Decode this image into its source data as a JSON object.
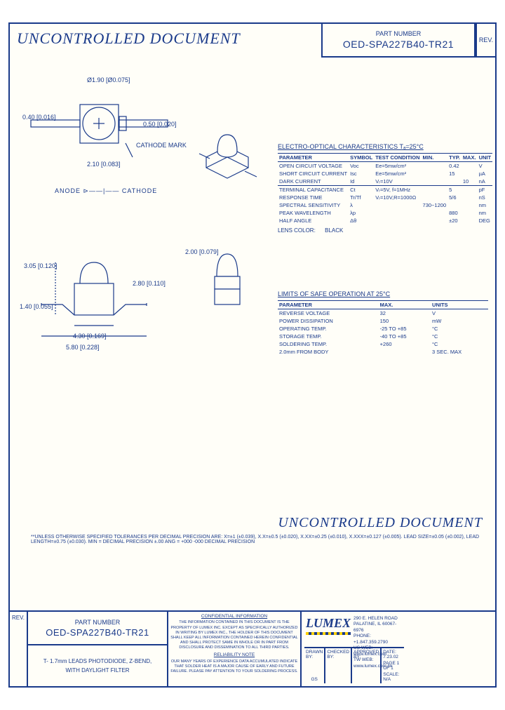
{
  "colors": {
    "line": "#1a3a8a",
    "bg": "#fffef8"
  },
  "watermark": "UNCONTROLLED DOCUMENT",
  "part_number": "OED-SPA227B40-TR21",
  "rev_label": "REV.",
  "pn_label": "PART NUMBER",
  "top_drawing": {
    "dims": {
      "dia": "Ø1.90 [Ø0.075]",
      "left": "0.40 [0.016]",
      "right": "0.50 [0.020]",
      "bottom": "2.10 [0.083]",
      "cathode": "CATHODE MARK"
    },
    "anode_cathode": "ANODE ⊳——|—— CATHODE"
  },
  "side_drawing": {
    "dims": {
      "h_overall": "3.05 [0.120]",
      "h_body": "2.80 [0.110]",
      "lead_h": "1.40 [0.055]",
      "w_body": "4.30 [0.169]",
      "w_overall": "5.80 [0.228]",
      "led_w": "2.00 [0.079]"
    }
  },
  "char_table": {
    "title": "ELECTRO-OPTICAL CHARACTERISTICS Tₐ=25°C",
    "columns": [
      "PARAMETER",
      "SYMBOL",
      "TEST CONDITION",
      "MIN.",
      "TYP.",
      "MAX.",
      "UNIT"
    ],
    "rows_a": [
      [
        "OPEN CIRCUIT VOLTAGE",
        "Voc",
        "Ee=5mw/cm²",
        "",
        "0.42",
        "",
        "V"
      ],
      [
        "SHORT CIRCUIT CURRENT",
        "Isc",
        "Ee=5mw/cm²",
        "",
        "15",
        "",
        "µA"
      ],
      [
        "DARK CURRENT",
        "Id",
        "Vᵣ=10V",
        "",
        "",
        "10",
        "nA"
      ]
    ],
    "rows_b": [
      [
        "TERMINAL CAPACITANCE",
        "Ct",
        "Vᵣ=5V, f=1MHz",
        "",
        "5",
        "",
        "pF"
      ],
      [
        "RESPONSE TIME",
        "Tr/Tf",
        "Vᵣ=10V,R=1000Ω",
        "",
        "5/6",
        "",
        "nS"
      ],
      [
        "SPECTRAL SENSITIVITY",
        "λ",
        "",
        "730~1200",
        "",
        "",
        "nm"
      ],
      [
        "PEAK WAVELENGTH",
        "λp",
        "",
        "",
        "880",
        "",
        "nm"
      ],
      [
        "HALF ANGLE",
        "Δθ",
        "",
        "",
        "±20",
        "",
        "DEG"
      ]
    ],
    "lens": {
      "label": "LENS COLOR:",
      "value": "BLACK"
    }
  },
  "limits_table": {
    "title": "LIMITS OF SAFE OPERATION AT 25°C",
    "columns": [
      "PARAMETER",
      "MAX.",
      "UNITS"
    ],
    "rows": [
      [
        "REVERSE VOLTAGE",
        "32",
        "V"
      ],
      [
        "POWER DISSIPATION",
        "150",
        "mW"
      ],
      [
        "OPERATING TEMP.",
        "-25 TO +85",
        "°C"
      ],
      [
        "STORAGE TEMP.",
        "-40 TO +85",
        "°C"
      ],
      [
        "SOLDERING TEMP.",
        "+260",
        "°C"
      ],
      [
        "2.0mm FROM BODY",
        "",
        "3 SEC. MAX"
      ]
    ]
  },
  "tolerance_note": "**UNLESS OTHERWISE SPECIFIED TOLERANCES PER DECIMAL PRECISION ARE: X=±1 (±0.039), X.X=±0.5 (±0.020), X.XX=±0.25 (±0.010), X.XXX=±0.127 (±0.005). LEAD SIZE=±0.05 (±0.002), LEAD LENGTH=±0.75 (±0.030). MIN = DECIMAL PRECISION ±.00   ANG = +000 -000 DECIMAL PRECISION",
  "bottom": {
    "description_l1": "T- 1.7mm LEADS PHOTODIODE, Z-BEND,",
    "description_l2": "WITH DAYLIGHT FILTER",
    "conf_title": "CONFIDENTIAL INFORMATION",
    "conf_text": "THE INFORMATION CONTAINED IN THIS DOCUMENT IS THE PROPERTY OF LUMEX INC. EXCEPT AS SPECIFICALLY AUTHORIZED IN WRITING BY LUMEX INC., THE HOLDER OF THIS DOCUMENT SHALL KEEP ALL INFORMATION CONTAINED HEREIN CONFIDENTIAL AND SHALL PROTECT SAME IN WHOLE OR IN PART FROM DISCLOSURE AND DISSEMINATION TO ALL THIRD PARTIES.",
    "rel_title": "RELIABILITY NOTE",
    "rel_text": "OUR MANY YEARS OF EXPERIENCE DATA ACCUMULATED INDICATE THAT SOLDER HEAT IS A MAJOR CAUSE OF EARLY AND FUTURE FAILURE. PLEASE PAY ATTENTION TO YOUR SOLDERING PROCESS.",
    "logo": "LUMEX",
    "addr_l1": "290 E. HELEN ROAD",
    "addr_l2": "PALATINE, IL 60067-6976",
    "phone": "PHONE: +1.847.359.2790",
    "us_web": "US WEB: www.lumex.com",
    "tw_web": "TW WEB: www.lumex.com.tw",
    "drawn": "DRAWN BY:",
    "drawn_val": "GS",
    "checked": "CHECKED BY:",
    "approved": "APPROVED BY:",
    "date_l": "DATE:",
    "date": "7.23.02",
    "page_l": "PAGE",
    "page": "1 OF 1",
    "scale_l": "SCALE:",
    "scale": "N/A"
  }
}
